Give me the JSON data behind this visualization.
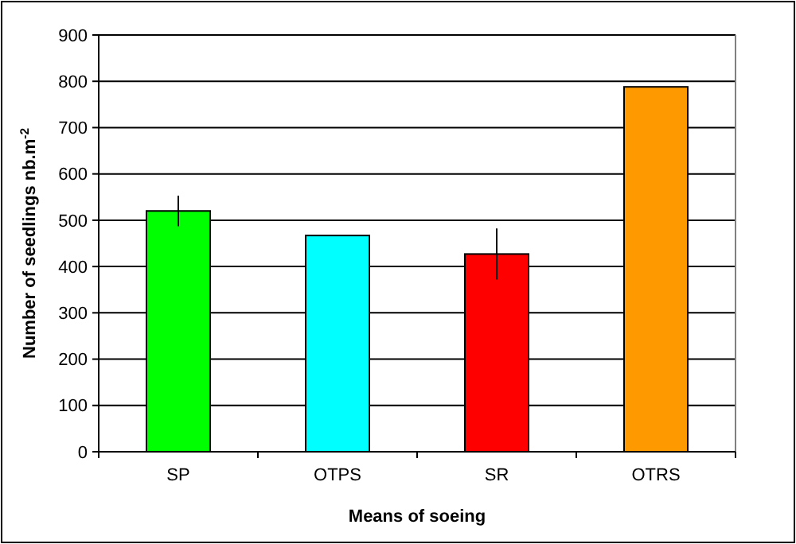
{
  "chart_data": {
    "type": "bar",
    "xlabel": "Means of soeing",
    "ylabel": "Number of seedlings nb.m$^{-2}$",
    "categories": [
      "SP",
      "OTPS",
      "SR",
      "OTRS"
    ],
    "values": [
      520,
      467,
      427,
      788
    ],
    "colors": [
      "#00ff00",
      "#00ffff",
      "#ff0000",
      "#ff9900"
    ],
    "errors": [
      33,
      null,
      55,
      null
    ],
    "ylim": [
      0,
      900
    ],
    "yticks": [
      0,
      100,
      200,
      300,
      400,
      500,
      600,
      700,
      800,
      900
    ],
    "grid": "y"
  }
}
